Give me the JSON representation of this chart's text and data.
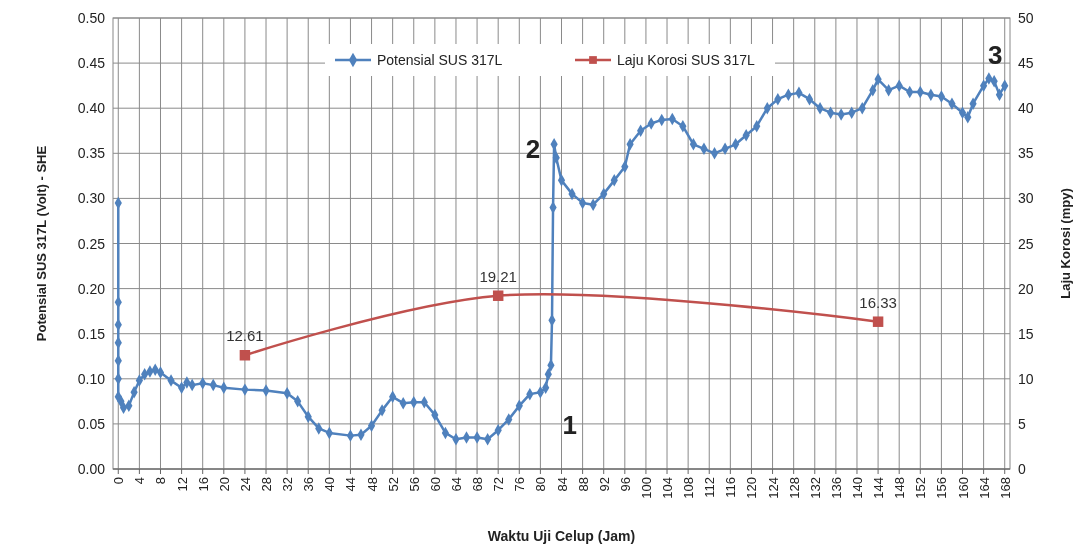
{
  "chart_data": {
    "type": "line",
    "xlabel": "Waktu Uji Celup (Jam)",
    "ylabel": "Potensial  SUS 317L  (Volt) - SHE",
    "y2label": "Laju Korosi (mpy)",
    "xlim": [
      -1,
      169
    ],
    "xticks": [
      0,
      4,
      8,
      12,
      16,
      20,
      24,
      28,
      32,
      36,
      40,
      44,
      48,
      52,
      56,
      60,
      64,
      68,
      72,
      76,
      80,
      84,
      88,
      92,
      96,
      100,
      104,
      108,
      112,
      116,
      120,
      124,
      128,
      132,
      136,
      140,
      144,
      148,
      152,
      156,
      160,
      164,
      168
    ],
    "ylim": [
      0,
      0.5
    ],
    "yticks": [
      {
        "value": 0,
        "label": "0.00"
      },
      {
        "value": 0.05,
        "label": "0.05"
      },
      {
        "value": 0.1,
        "label": "0.10"
      },
      {
        "value": 0.15,
        "label": "0.15"
      },
      {
        "value": 0.2,
        "label": "0.20"
      },
      {
        "value": 0.25,
        "label": "0.25"
      },
      {
        "value": 0.3,
        "label": "0.30"
      },
      {
        "value": 0.35,
        "label": "0.35"
      },
      {
        "value": 0.4,
        "label": "0.40"
      },
      {
        "value": 0.45,
        "label": "0.45"
      },
      {
        "value": 0.5,
        "label": "0.50"
      }
    ],
    "y2lim": [
      0,
      50
    ],
    "y2ticks": [
      0,
      5,
      10,
      15,
      20,
      25,
      30,
      35,
      40,
      45,
      50
    ],
    "grid": true,
    "legend": "top",
    "series": [
      {
        "name": "Potensial SUS 317L",
        "color": "#4f81bd",
        "marker": "diamond",
        "x": [
          0,
          0,
          0,
          0,
          0,
          0,
          0,
          0.5,
          1,
          2,
          3,
          4,
          5,
          6,
          7,
          8,
          10,
          12,
          13,
          14,
          16,
          18,
          20,
          24,
          28,
          32,
          34,
          36,
          38,
          40,
          44,
          46,
          48,
          50,
          52,
          54,
          56,
          58,
          60,
          62,
          64,
          66,
          68,
          70,
          72,
          74,
          76,
          78,
          80,
          81,
          81.5,
          82,
          82.2,
          82.4,
          82.6,
          83,
          84,
          86,
          88,
          90,
          92,
          94,
          96,
          97,
          99,
          101,
          103,
          105,
          107,
          109,
          111,
          113,
          115,
          117,
          119,
          121,
          123,
          125,
          127,
          129,
          131,
          133,
          135,
          137,
          139,
          141,
          143,
          144,
          146,
          148,
          150,
          152,
          154,
          156,
          158,
          160,
          161,
          162,
          164,
          165,
          166,
          167,
          168
        ],
        "values": [
          0.295,
          0.185,
          0.16,
          0.14,
          0.12,
          0.1,
          0.08,
          0.075,
          0.068,
          0.07,
          0.085,
          0.098,
          0.105,
          0.108,
          0.11,
          0.107,
          0.098,
          0.09,
          0.096,
          0.093,
          0.095,
          0.093,
          0.09,
          0.088,
          0.087,
          0.084,
          0.075,
          0.058,
          0.045,
          0.04,
          0.037,
          0.038,
          0.048,
          0.065,
          0.08,
          0.073,
          0.074,
          0.074,
          0.06,
          0.04,
          0.033,
          0.035,
          0.035,
          0.033,
          0.043,
          0.055,
          0.07,
          0.083,
          0.085,
          0.09,
          0.105,
          0.115,
          0.165,
          0.29,
          0.36,
          0.345,
          0.32,
          0.305,
          0.295,
          0.293,
          0.305,
          0.32,
          0.335,
          0.36,
          0.375,
          0.383,
          0.387,
          0.388,
          0.38,
          0.36,
          0.355,
          0.35,
          0.355,
          0.36,
          0.37,
          0.38,
          0.4,
          0.41,
          0.415,
          0.417,
          0.41,
          0.4,
          0.395,
          0.393,
          0.395,
          0.4,
          0.42,
          0.432,
          0.42,
          0.425,
          0.418,
          0.418,
          0.415,
          0.413,
          0.405,
          0.395,
          0.39,
          0.405,
          0.425,
          0.433,
          0.43,
          0.415,
          0.425
        ]
      },
      {
        "name": "Laju Korosi SUS 317L",
        "color": "#c0504d",
        "marker": "square",
        "axis": "y2",
        "x": [
          24,
          72,
          144
        ],
        "values": [
          12.61,
          19.21,
          16.33
        ],
        "value_labels": [
          "12.61",
          "19.21",
          "16.33"
        ]
      }
    ],
    "annotations": [
      {
        "text": "1",
        "x": 80,
        "y": 0.085
      },
      {
        "text": "2",
        "x": 82.6,
        "y": 0.36
      },
      {
        "text": "3",
        "x": 165,
        "y": 0.433
      }
    ]
  }
}
